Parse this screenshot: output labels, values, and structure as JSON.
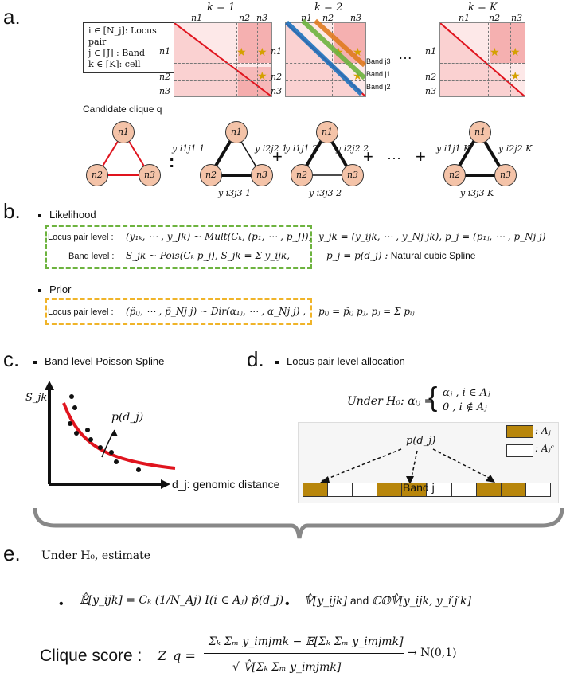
{
  "sections": {
    "a": "a.",
    "b": "b.",
    "c": "c.",
    "d": "d.",
    "e": "e."
  },
  "panel_a": {
    "legend": [
      "i ∈ [N_j]: Locus pair",
      "j ∈ [J]  : Band",
      "k ∈ [K]: cell"
    ],
    "k_labels": [
      "k = 1",
      "k = 2",
      "k = K"
    ],
    "col_labels": [
      "n1",
      "n2",
      "n3"
    ],
    "row_labels": [
      "n1",
      "n2",
      "n3"
    ],
    "band_labels": [
      "Band j3",
      "Band j1",
      "Band j2"
    ],
    "ellipsis": "…",
    "candidate": "Candidate clique q",
    "colon": ":",
    "plus": "+",
    "dots": "···",
    "edge_k1": [
      "y i1j1 1",
      "y i2j2 1",
      "y i3j3 1"
    ],
    "edge_k2": [
      "y i1j1 2",
      "y i2j2 2",
      "y i3j3 2"
    ],
    "edge_kK": [
      "y i1j1 K",
      "y i2j2 K",
      "y i3j3 K"
    ]
  },
  "panel_b": {
    "likelihood": "Likelihood",
    "lp_label": "Locus pair level :",
    "lp_eq": "(y₁ₖ, ⋯ , y_Jk) ~ Mult(Cₖ, (p₁, ⋯ , p_J)),",
    "band_label": "Band level :",
    "band_eq": "S_jk ~ Pois(Cₖ p_j),   S_jk = Σ y_ijk,",
    "right1": "y_jk = (y_ijk, ⋯ , y_Nj jk),   p_j = (p₁ⱼ, ⋯ , p_Nj j)",
    "right2": "p_j = p(d_j) :",
    "right2_text": "Natural cubic Spline",
    "prior": "Prior",
    "prior_label": "Locus pair level :",
    "prior_eq": "(p̃ᵢⱼ, ⋯ , p̃_Nj j) ~ Dir(α₁ⱼ, ⋯ , α_Nj j) ,",
    "prior_right": "pᵢⱼ = p̃ᵢⱼ pⱼ,   pⱼ = Σ pᵢⱼ"
  },
  "panel_c": {
    "title": "Band level Poisson Spline",
    "ylabel": "S_jk",
    "curve_label": "p(d_j)",
    "xlabel": "d_j: genomic distance"
  },
  "panel_d": {
    "title": "Locus pair level allocation",
    "h0": "Under H₀: αᵢⱼ =",
    "case1": "αⱼ ,   i ∈ Aⱼ",
    "case2": "0 ,   i ∉ Aⱼ",
    "pdj": "p(d_j)",
    "legend_a": ": Aⱼ",
    "legend_ac": ": Aⱼᶜ",
    "band": "Band j"
  },
  "panel_e": {
    "estimate": "Under H₀, estimate",
    "eq1": "𝔼̂[y_ijk] = Cₖ (1/N_Aj) I(i ∈ Aⱼ) p̂(d_j)",
    "eq2a": "𝕍̂[y_ijk]",
    "and": "and",
    "eq2b": "ℂ𝕆𝕍̂[y_ijk, y_i′j′k]",
    "clique": "Clique score :",
    "zq": "Z_q =",
    "num": "Σₖ Σₘ y_imjmk − 𝔼[Σₖ Σₘ y_imjmk]",
    "den": "√ 𝕍̂[Σₖ Σₘ y_imjmk]",
    "limit": "→ N(0,1)"
  },
  "colors": {
    "red": "#e0141e",
    "green": "#6db33f",
    "gold": "#f0b429",
    "band_gold": "#b8860b",
    "blue": "#1e73be",
    "orange": "#e07b20",
    "node": "#f4c3a8"
  }
}
